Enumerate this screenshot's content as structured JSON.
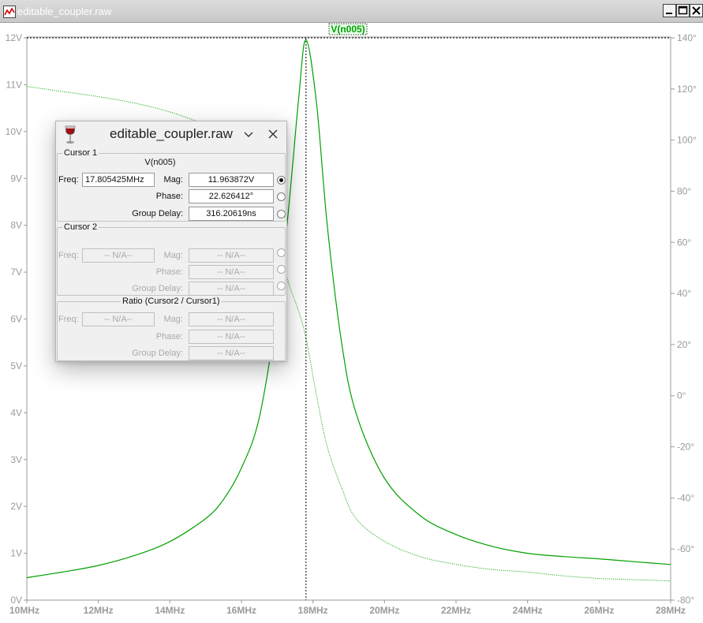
{
  "window": {
    "title": "editable_coupler.raw",
    "buttons": [
      "minimize",
      "maximize",
      "close"
    ]
  },
  "plot": {
    "trace_label": "V(n005)",
    "colors": {
      "trace": "#00a000",
      "label_bg": "#e6ffe6",
      "axis_text": "#9a9a9a",
      "cursor": "#000000"
    }
  },
  "chart_data": {
    "type": "line",
    "x_axis": {
      "ticks": [
        "10MHz",
        "12MHz",
        "14MHz",
        "16MHz",
        "18MHz",
        "20MHz",
        "22MHz",
        "24MHz",
        "26MHz",
        "28MHz"
      ],
      "range_mhz": [
        10,
        28
      ]
    },
    "y_left": {
      "ticks": [
        "0V",
        "1V",
        "2V",
        "3V",
        "4V",
        "5V",
        "6V",
        "7V",
        "8V",
        "9V",
        "10V",
        "11V",
        "12V"
      ],
      "range": [
        0,
        12
      ]
    },
    "y_right": {
      "ticks": [
        "-80°",
        "-60°",
        "-40°",
        "-20°",
        "0°",
        "20°",
        "40°",
        "60°",
        "80°",
        "100°",
        "120°",
        "140°"
      ],
      "range": [
        -80,
        140
      ]
    },
    "series": [
      {
        "name": "V(n005)",
        "style": "solid",
        "axis": "left",
        "x": [
          10,
          11,
          12,
          13,
          14,
          15,
          15.5,
          16,
          16.5,
          17,
          17.3,
          17.6,
          17.805,
          18.1,
          18.4,
          18.8,
          19.2,
          20,
          21,
          22,
          23,
          24,
          25,
          26,
          27,
          28
        ],
        "y": [
          0.48,
          0.6,
          0.74,
          0.95,
          1.25,
          1.74,
          2.15,
          2.82,
          3.9,
          6.2,
          8.2,
          10.7,
          11.96,
          10.6,
          8.0,
          5.5,
          4.0,
          2.6,
          1.8,
          1.4,
          1.15,
          1.0,
          0.93,
          0.88,
          0.82,
          0.76
        ]
      },
      {
        "name": "V(n005) phase",
        "style": "dotted",
        "axis": "right",
        "x": [
          10,
          11,
          12,
          13,
          14,
          15,
          15.5,
          16,
          16.5,
          17,
          17.3,
          17.6,
          17.805,
          18.1,
          18.4,
          18.8,
          19.2,
          20,
          21,
          22,
          23,
          24,
          25,
          26,
          27,
          28
        ],
        "y": [
          121,
          119,
          117,
          114.5,
          111,
          106,
          102,
          95,
          84,
          62,
          45,
          33,
          22.6,
          0,
          -20,
          -36,
          -48,
          -57,
          -63,
          -66,
          -68,
          -69,
          -70.5,
          -71.5,
          -72,
          -72.5
        ]
      }
    ],
    "cursor_x_mhz": 17.805425
  },
  "dialog": {
    "title": "editable_coupler.raw",
    "cursor1": {
      "group_label": "Cursor 1",
      "trace": "V(n005)",
      "freq_label": "Freq:",
      "freq_value": "17.805425MHz",
      "mag_label": "Mag:",
      "mag_value": "11.963872V",
      "phase_label": "Phase:",
      "phase_value": "22.626412°",
      "gd_label": "Group Delay:",
      "gd_value": "316.20619ns"
    },
    "cursor2": {
      "group_label": "Cursor 2",
      "freq_label": "Freq:",
      "freq_value": "-- N/A--",
      "mag_label": "Mag:",
      "mag_value": "-- N/A--",
      "phase_label": "Phase:",
      "phase_value": "-- N/A--",
      "gd_label": "Group Delay:",
      "gd_value": "-- N/A--"
    },
    "ratio": {
      "group_label": "Ratio (Cursor2 / Cursor1)",
      "freq_label": "Freq:",
      "freq_value": "-- N/A--",
      "mag_label": "Mag:",
      "mag_value": "-- N/A--",
      "phase_label": "Phase:",
      "phase_value": "-- N/A--",
      "gd_label": "Group Delay:",
      "gd_value": "-- N/A--"
    }
  }
}
